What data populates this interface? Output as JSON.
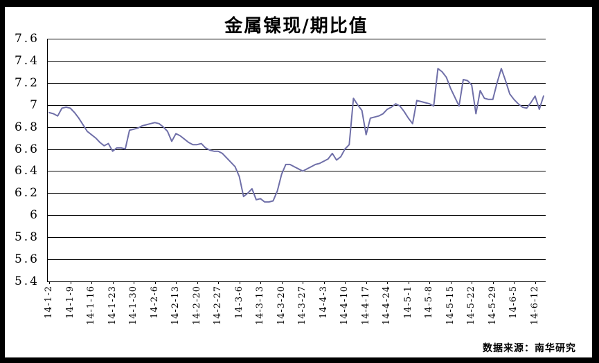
{
  "chart_data": {
    "type": "line",
    "title": "金属镍现/期比值",
    "source_note": "数据来源：南华研究",
    "series_color": "#6f6fa8",
    "grid_color": "#000000",
    "text_color": "#000000",
    "plot_background": "#ffffff",
    "frame_color": "#000000",
    "legend": "none",
    "grid": "horizontal",
    "ylim": [
      5.4,
      7.6
    ],
    "y_major_unit": 0.2,
    "y_tick_labels": [
      "7.6",
      "7.4",
      "7.2",
      "7",
      "6.8",
      "6.6",
      "6.4",
      "6.2",
      "6",
      "5.8",
      "5.6",
      "5.4"
    ],
    "x_tick_labels": [
      "14-1-2",
      "14-1-9",
      "14-1-16",
      "14-1-23",
      "14-1-30",
      "14-2-6",
      "14-2-13",
      "14-2-20",
      "14-2-27",
      "14-3-6",
      "14-3-13",
      "14-3-20",
      "14-3-27",
      "14-4-3",
      "14-4-10",
      "14-4-17",
      "14-4-24",
      "14-5-1",
      "14-5-8",
      "14-5-15",
      "14-5-22",
      "14-5-29",
      "14-6-5",
      "14-6-12"
    ],
    "points_per_x_tick": 5,
    "values": [
      6.93,
      6.92,
      6.9,
      6.97,
      6.98,
      6.97,
      6.93,
      6.88,
      6.82,
      6.76,
      6.73,
      6.7,
      6.66,
      6.63,
      6.65,
      6.58,
      6.61,
      6.61,
      6.6,
      6.77,
      6.78,
      6.79,
      6.81,
      6.82,
      6.83,
      6.84,
      6.83,
      6.8,
      6.76,
      6.67,
      6.74,
      6.72,
      6.69,
      6.66,
      6.64,
      6.64,
      6.65,
      6.61,
      6.59,
      6.58,
      6.58,
      6.56,
      6.52,
      6.48,
      6.44,
      6.35,
      6.17,
      6.2,
      6.24,
      6.14,
      6.15,
      6.12,
      6.12,
      6.13,
      6.22,
      6.37,
      6.46,
      6.46,
      6.44,
      6.42,
      6.4,
      6.42,
      6.44,
      6.46,
      6.47,
      6.49,
      6.51,
      6.56,
      6.5,
      6.53,
      6.6,
      6.64,
      7.06,
      7.0,
      6.95,
      6.73,
      6.88,
      6.89,
      6.9,
      6.92,
      6.96,
      6.98,
      7.01,
      6.99,
      6.94,
      6.88,
      6.83,
      7.04,
      7.03,
      7.02,
      7.01,
      6.99,
      7.33,
      7.3,
      7.25,
      7.15,
      7.07,
      6.99,
      7.23,
      7.22,
      7.18,
      6.92,
      7.13,
      7.06,
      7.05,
      7.05,
      7.2,
      7.33,
      7.22,
      7.1,
      7.05,
      7.01,
      6.98,
      6.97,
      7.02,
      7.08,
      6.96,
      7.08
    ]
  }
}
